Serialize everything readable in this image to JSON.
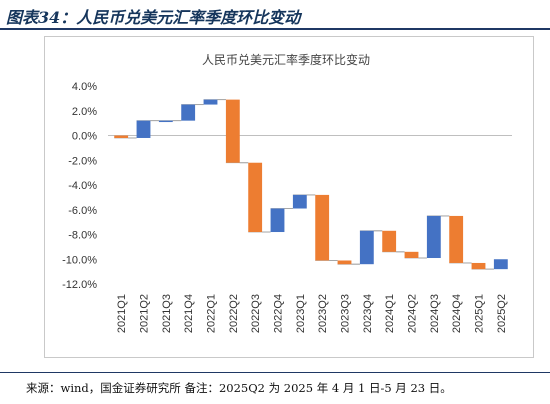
{
  "header": {
    "figure_title": "图表34：人民币兑美元汇率季度环比变动"
  },
  "footer": {
    "source": "来源：wind，国金证券研究所 备注：2025Q2 为 2025 年 4 月 1 日-5 月 23 日。"
  },
  "colors": {
    "up": "#4472c4",
    "down": "#ed7d31",
    "connector": "#a6a6a6",
    "border": "#c9c9c9",
    "title_rule": "#1f3864"
  },
  "chart_data": {
    "type": "bar",
    "subtype": "waterfall",
    "title": "人民币兑美元汇率季度环比变动",
    "xlabel": "",
    "ylabel": "",
    "ylim": [
      -12,
      4
    ],
    "yticks": [
      "4.0%",
      "2.0%",
      "0.0%",
      "-2.0%",
      "-4.0%",
      "-6.0%",
      "-8.0%",
      "-10.0%",
      "-12.0%"
    ],
    "ytick_values": [
      4,
      2,
      0,
      -2,
      -4,
      -6,
      -8,
      -10,
      -12
    ],
    "grid": false,
    "legend": "none",
    "categories": [
      "2021Q1",
      "2021Q2",
      "2021Q3",
      "2021Q4",
      "2022Q1",
      "2022Q2",
      "2022Q3",
      "2022Q4",
      "2023Q1",
      "2023Q2",
      "2023Q3",
      "2023Q4",
      "2024Q1",
      "2024Q2",
      "2024Q3",
      "2024Q4",
      "2025Q1",
      "2025Q2"
    ],
    "values": [
      -0.2,
      1.4,
      0.0,
      1.3,
      0.4,
      -5.1,
      -5.6,
      1.9,
      1.1,
      -5.3,
      -0.3,
      2.7,
      -1.7,
      -0.5,
      3.4,
      -3.8,
      -0.5,
      0.8
    ]
  }
}
